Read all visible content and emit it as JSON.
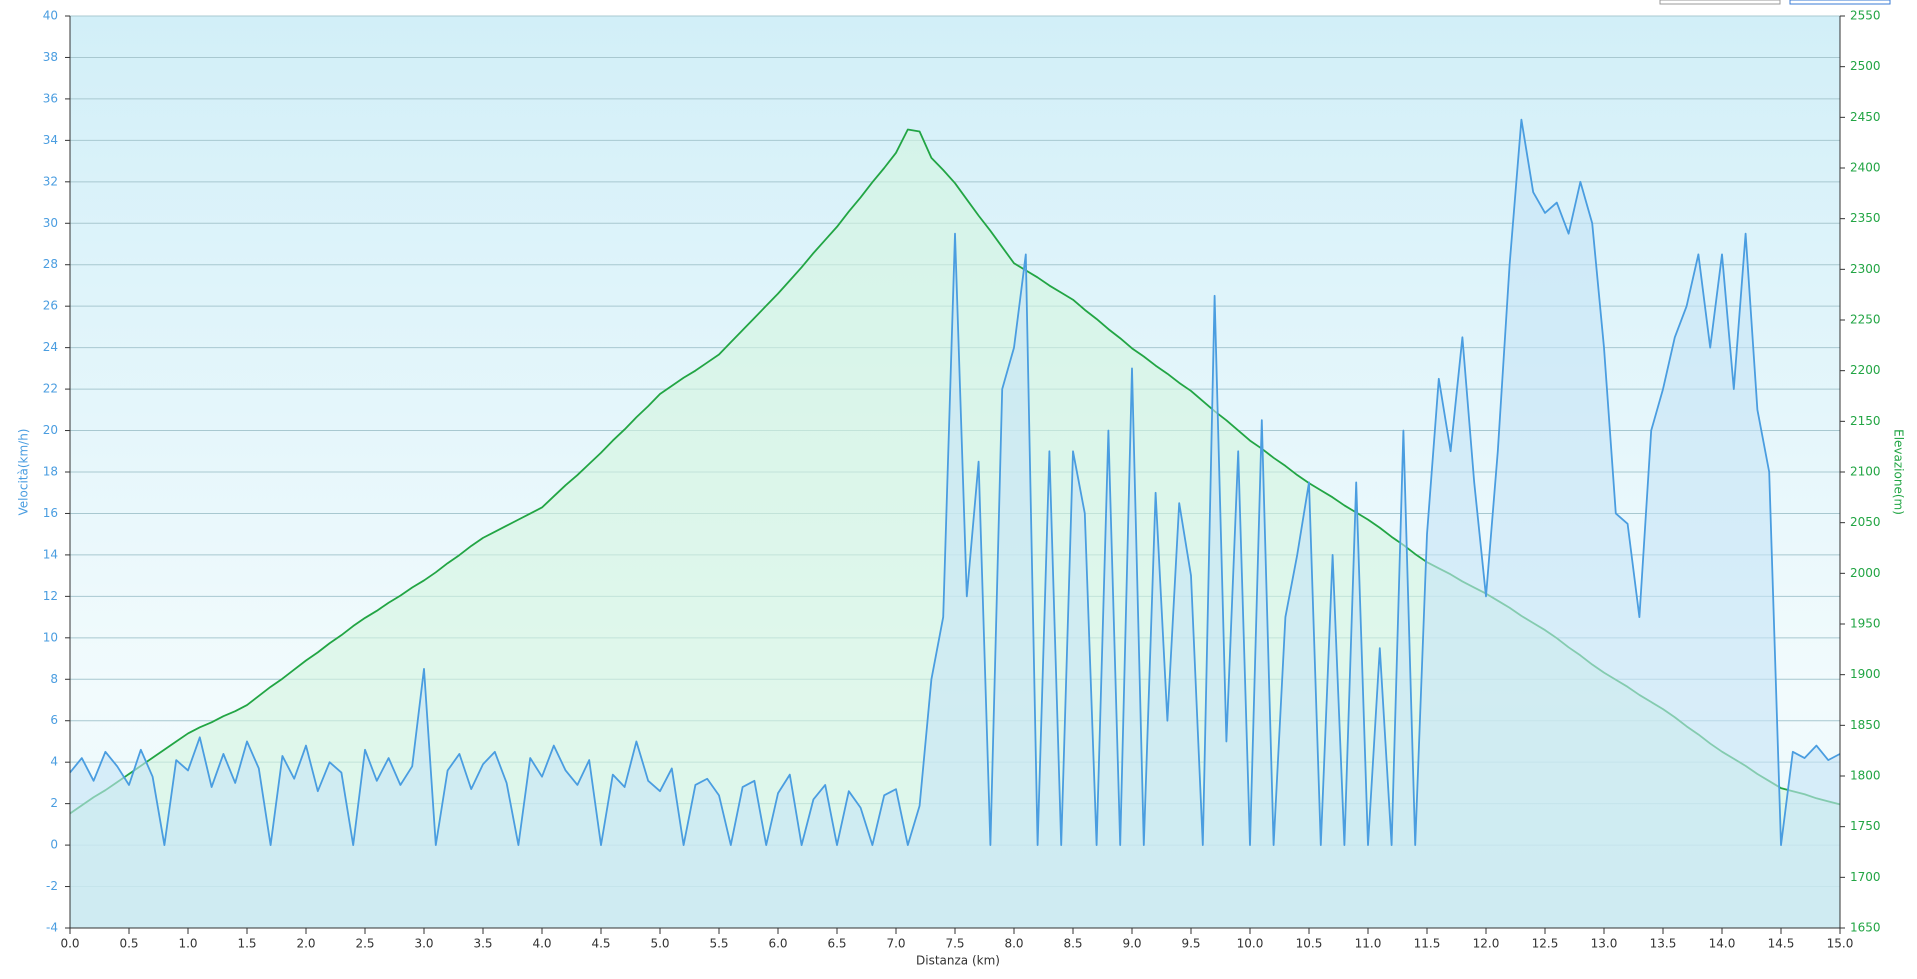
{
  "chart_data": {
    "type": "line",
    "xlabel": "Distanza  (km)",
    "ylabel": "Velocità(km/h)",
    "y2label": "Elevazione(m)",
    "x": [
      0,
      0.1,
      0.2,
      0.3,
      0.4,
      0.5,
      0.6,
      0.7,
      0.8,
      0.9,
      1,
      1.1,
      1.2,
      1.3,
      1.4,
      1.5,
      1.6,
      1.7,
      1.8,
      1.9,
      2,
      2.1,
      2.2,
      2.3,
      2.4,
      2.5,
      2.6,
      2.7,
      2.8,
      2.9,
      3,
      3.1,
      3.2,
      3.3,
      3.4,
      3.5,
      3.6,
      3.7,
      3.8,
      3.9,
      4,
      4.1,
      4.2,
      4.3,
      4.4,
      4.5,
      4.6,
      4.7,
      4.8,
      4.9,
      5,
      5.1,
      5.2,
      5.3,
      5.4,
      5.5,
      5.6,
      5.7,
      5.8,
      5.9,
      6,
      6.1,
      6.2,
      6.3,
      6.4,
      6.5,
      6.6,
      6.7,
      6.8,
      6.9,
      7,
      7.1,
      7.2,
      7.3,
      7.4,
      7.5,
      7.6,
      7.7,
      7.8,
      7.9,
      8,
      8.1,
      8.2,
      8.3,
      8.4,
      8.5,
      8.6,
      8.7,
      8.8,
      8.9,
      9,
      9.1,
      9.2,
      9.3,
      9.4,
      9.5,
      9.6,
      9.7,
      9.8,
      9.9,
      10,
      10.1,
      10.2,
      10.3,
      10.4,
      10.5,
      10.6,
      10.7,
      10.8,
      10.9,
      11,
      11.1,
      11.2,
      11.3,
      11.4,
      11.5,
      11.6,
      11.7,
      11.8,
      11.9,
      12,
      12.1,
      12.2,
      12.3,
      12.4,
      12.5,
      12.6,
      12.7,
      12.8,
      12.9,
      13,
      13.1,
      13.2,
      13.3,
      13.4,
      13.5,
      13.6,
      13.7,
      13.8,
      13.9,
      14,
      14.1,
      14.2,
      14.3,
      14.4,
      14.5,
      14.6,
      14.7,
      14.8,
      14.9,
      15
    ],
    "series": [
      {
        "name": "Velocità",
        "color": "#4a9de0",
        "fill": "#c6e4f7",
        "axis": "y",
        "values": [
          3.5,
          4.2,
          3.1,
          4.5,
          3.8,
          2.9,
          4.6,
          3.3,
          0,
          4.1,
          3.6,
          5.2,
          2.8,
          4.4,
          3,
          5,
          3.7,
          0,
          4.3,
          3.2,
          4.8,
          2.6,
          4,
          3.5,
          0,
          4.6,
          3.1,
          4.2,
          2.9,
          3.8,
          8.5,
          0,
          3.6,
          4.4,
          2.7,
          3.9,
          4.5,
          3,
          0,
          4.2,
          3.3,
          4.8,
          3.6,
          2.9,
          4.1,
          0,
          3.4,
          2.8,
          5,
          3.1,
          2.6,
          3.7,
          0,
          2.9,
          3.2,
          2.4,
          0,
          2.8,
          3.1,
          0,
          2.5,
          3.4,
          0,
          2.2,
          2.9,
          0,
          2.6,
          1.8,
          0,
          2.4,
          2.7,
          0,
          1.9,
          8,
          11,
          29.5,
          12,
          18.5,
          0,
          22,
          24,
          28.5,
          0,
          19,
          0,
          19,
          16,
          0,
          20,
          0,
          23,
          0,
          17,
          6,
          16.5,
          13,
          0,
          26.5,
          5,
          19,
          0,
          20.5,
          0,
          11,
          14,
          17.5,
          0,
          14,
          0,
          17.5,
          0,
          9.5,
          0,
          20,
          0,
          15,
          22.5,
          19,
          24.5,
          17.5,
          12,
          19,
          28,
          35,
          31.5,
          30.5,
          31,
          29.5,
          32,
          30,
          24,
          16,
          15.5,
          11,
          20,
          22,
          24.5,
          26,
          28.5,
          24,
          28.5,
          22,
          29.5,
          21,
          18,
          0,
          4.5,
          4.2,
          4.8,
          4.1,
          4.4
        ]
      },
      {
        "name": "Elevazione",
        "color": "#22a544",
        "fill": "#d4f5e0",
        "axis": "y2",
        "values": [
          1763,
          1771,
          1779,
          1786,
          1794,
          1802,
          1810,
          1818,
          1826,
          1834,
          1842,
          1848,
          1853,
          1859,
          1864,
          1870,
          1879,
          1888,
          1896,
          1905,
          1914,
          1922,
          1931,
          1939,
          1948,
          1956,
          1963,
          1971,
          1978,
          1986,
          1993,
          2001,
          2010,
          2018,
          2027,
          2035,
          2041,
          2047,
          2053,
          2059,
          2065,
          2076,
          2087,
          2097,
          2108,
          2119,
          2131,
          2142,
          2154,
          2165,
          2177,
          2185,
          2193,
          2200,
          2208,
          2216,
          2228,
          2240,
          2252,
          2264,
          2276,
          2289,
          2302,
          2316,
          2329,
          2342,
          2357,
          2371,
          2386,
          2400,
          2415,
          2438,
          2436,
          2410,
          2398,
          2385,
          2369,
          2353,
          2338,
          2322,
          2306,
          2299,
          2292,
          2284,
          2277,
          2270,
          2260,
          2251,
          2241,
          2232,
          2222,
          2214,
          2205,
          2197,
          2188,
          2180,
          2170,
          2160,
          2151,
          2141,
          2131,
          2123,
          2114,
          2106,
          2097,
          2089,
          2082,
          2075,
          2067,
          2060,
          2053,
          2045,
          2036,
          2028,
          2019,
          2011,
          2005,
          1999,
          1992,
          1986,
          1980,
          1973,
          1966,
          1958,
          1951,
          1944,
          1936,
          1927,
          1919,
          1910,
          1902,
          1895,
          1888,
          1880,
          1873,
          1866,
          1858,
          1849,
          1841,
          1832,
          1824,
          1817,
          1810,
          1802,
          1795,
          1788,
          1785,
          1782,
          1778,
          1775,
          1772
        ]
      }
    ],
    "xlim": [
      0,
      15
    ],
    "xticks": [
      {
        "value": 0,
        "label": "0.0"
      },
      0.5,
      {
        "value": 1,
        "label": "1.0"
      },
      1.5,
      {
        "value": 2,
        "label": "2.0"
      },
      2.5,
      {
        "value": 3,
        "label": "3.0"
      },
      3.5,
      {
        "value": 4,
        "label": "4.0"
      },
      4.5,
      {
        "value": 5,
        "label": "5.0"
      },
      5.5,
      {
        "value": 6,
        "label": "6.0"
      },
      6.5,
      {
        "value": 7,
        "label": "7.0"
      },
      7.5,
      {
        "value": 8,
        "label": "8.0"
      },
      8.5,
      {
        "value": 9,
        "label": "9.0"
      },
      9.5,
      {
        "value": 10,
        "label": "10.0"
      },
      10.5,
      {
        "value": 11,
        "label": "11.0"
      },
      11.5,
      {
        "value": 12,
        "label": "12.0"
      },
      12.5,
      {
        "value": 13,
        "label": "13.0"
      },
      13.5,
      {
        "value": 14,
        "label": "14.0"
      },
      14.5,
      {
        "value": 15,
        "label": "15.0"
      }
    ],
    "ylim": [
      -4,
      40
    ],
    "yticks": [
      -4,
      -2,
      0,
      2,
      4,
      6,
      8,
      10,
      12,
      14,
      16,
      18,
      20,
      22,
      24,
      26,
      28,
      30,
      32,
      34,
      36,
      38,
      40
    ],
    "y2lim": [
      1650,
      2550
    ],
    "y2ticks": [
      1650,
      1700,
      1750,
      1800,
      1850,
      1900,
      1950,
      2000,
      2050,
      2100,
      2150,
      2200,
      2250,
      2300,
      2350,
      2400,
      2450,
      2500,
      2550
    ],
    "grid": true
  }
}
